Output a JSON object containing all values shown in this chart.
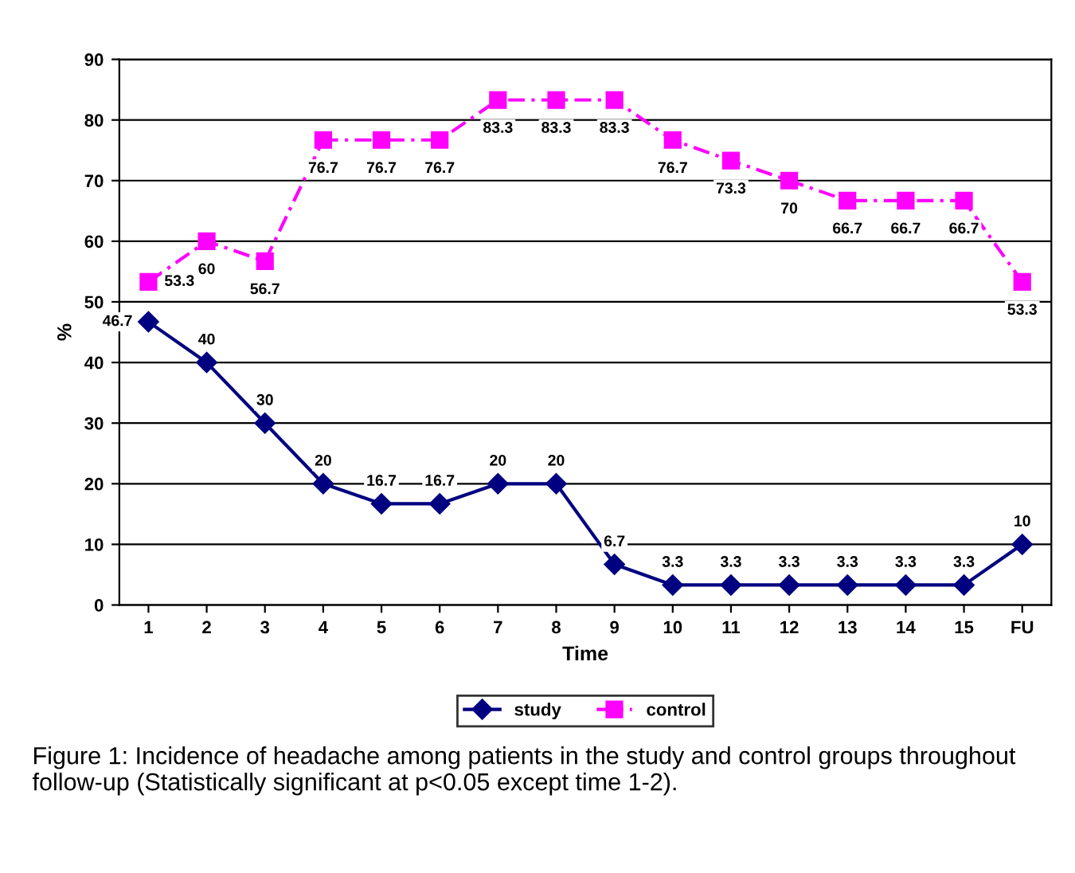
{
  "chart_data": {
    "type": "line",
    "xlabel": "Time",
    "ylabel": "%",
    "categories": [
      "1",
      "2",
      "3",
      "4",
      "5",
      "6",
      "7",
      "8",
      "9",
      "10",
      "11",
      "12",
      "13",
      "14",
      "15",
      "FU"
    ],
    "series": [
      {
        "name": "study",
        "color": "#000080",
        "marker": "diamond",
        "line_style": "solid",
        "values": [
          46.7,
          40,
          30,
          20,
          16.7,
          16.7,
          20,
          20,
          6.7,
          3.3,
          3.3,
          3.3,
          3.3,
          3.3,
          3.3,
          10
        ]
      },
      {
        "name": "control",
        "color": "#ff00ff",
        "marker": "square",
        "line_style": "dashed",
        "values": [
          53.3,
          60,
          56.7,
          76.7,
          76.7,
          76.7,
          83.3,
          83.3,
          83.3,
          76.7,
          73.3,
          70,
          66.7,
          66.7,
          66.7,
          53.3
        ]
      }
    ],
    "ylim": [
      0,
      90
    ],
    "yticks": [
      0,
      10,
      20,
      30,
      40,
      50,
      60,
      70,
      80,
      90
    ],
    "grid": "y",
    "legend": "bottom",
    "data_labels": true,
    "annotations": [
      "Figure 1: Incidence of headache among patients in the study and control groups throughout follow-up (Statistically significant at p<0.05 except time 1-2)."
    ]
  }
}
